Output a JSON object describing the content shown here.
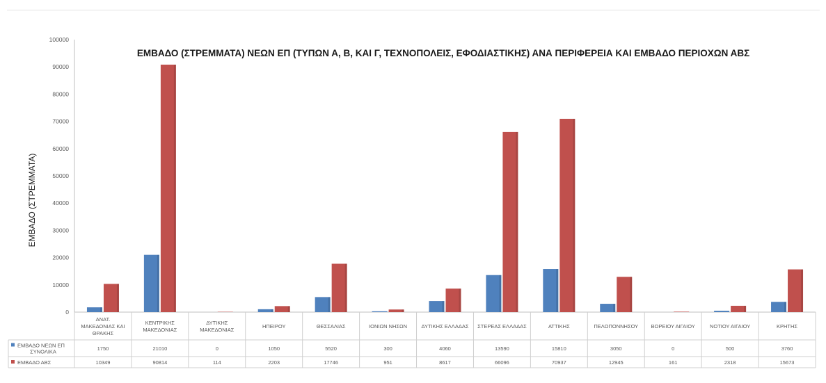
{
  "colors": {
    "series1": "#4f81bd",
    "series2": "#c0504d",
    "axis_text": "#595959",
    "grid": "#d9d9d9",
    "title": "#1a1a1a"
  },
  "chart_data": {
    "type": "bar",
    "title": "ΕΜΒΑΔΟ (ΣΤΡΕΜΜΑΤΑ) ΝΕΩΝ ΕΠ  (ΤΥΠΩΝ Α, Β, ΚΑΙ Γ, ΤΕΧΝΟΠΟΛΕΙΣ, ΕΦΟΔΙΑΣΤΙΚΗΣ) ΑΝΑ ΠΕΡΙΦΕΡΕΙΑ ΚΑΙ ΕΜΒΑΔΟ ΠΕΡΙΟΧΩΝ ΑΒΣ",
    "ylabel": "ΕΜΒΑΔΟ (ΣΤΡΕΜΜΑΤΑ)",
    "xlabel": "",
    "ylim": [
      0,
      100000
    ],
    "yticks": [
      0,
      10000,
      20000,
      30000,
      40000,
      50000,
      60000,
      70000,
      80000,
      90000,
      100000
    ],
    "grid": false,
    "legend": "data-table",
    "categories": [
      [
        "ΑΝΑΤ.",
        "ΜΑΚΕΔΟΝΙΑΣ ΚΑΙ",
        "ΘΡΑΚΗΣ"
      ],
      [
        "ΚΕΝΤΡΙΚΗΣ",
        "ΜΑΚΕΔΟΝΙΑΣ"
      ],
      [
        "ΔΥΤΙΚΗΣ",
        "ΜΑΚΕΔΟΝΙΑΣ"
      ],
      [
        "ΗΠΕΙΡΟΥ"
      ],
      [
        "ΘΕΣΣΑΛΙΑΣ"
      ],
      [
        "ΙΟΝΙΩΝ ΝΗΣΩΝ"
      ],
      [
        "ΔΥΤΙΚΗΣ ΕΛΛΑΔΑΣ"
      ],
      [
        "ΣΤΕΡΕΑΣ ΕΛΛΑΔΑΣ"
      ],
      [
        "ΑΤΤΙΚΗΣ"
      ],
      [
        "ΠΕΛΟΠΟΝΝΗΣΟΥ"
      ],
      [
        "ΒΟΡΕΙΟΥ ΑΙΓΑΙΟΥ"
      ],
      [
        "ΝΟΤΙΟΥ ΑΙΓΑΙΟΥ"
      ],
      [
        "ΚΡΗΤΗΣ"
      ]
    ],
    "series": [
      {
        "name": [
          "ΕΜΒΑΔΟ ΝΕΩΝ ΕΠ",
          "ΣΥΝΟΛΙΚΑ"
        ],
        "values": [
          1750,
          21010,
          0,
          1050,
          5520,
          300,
          4060,
          13590,
          15810,
          3050,
          0,
          500,
          3760
        ]
      },
      {
        "name": [
          "ΕΜΒΑΔΟ ΑΒΣ"
        ],
        "values": [
          10349,
          90814,
          114,
          2203,
          17746,
          951,
          8617,
          66096,
          70937,
          12945,
          161,
          2318,
          15673
        ]
      }
    ]
  }
}
